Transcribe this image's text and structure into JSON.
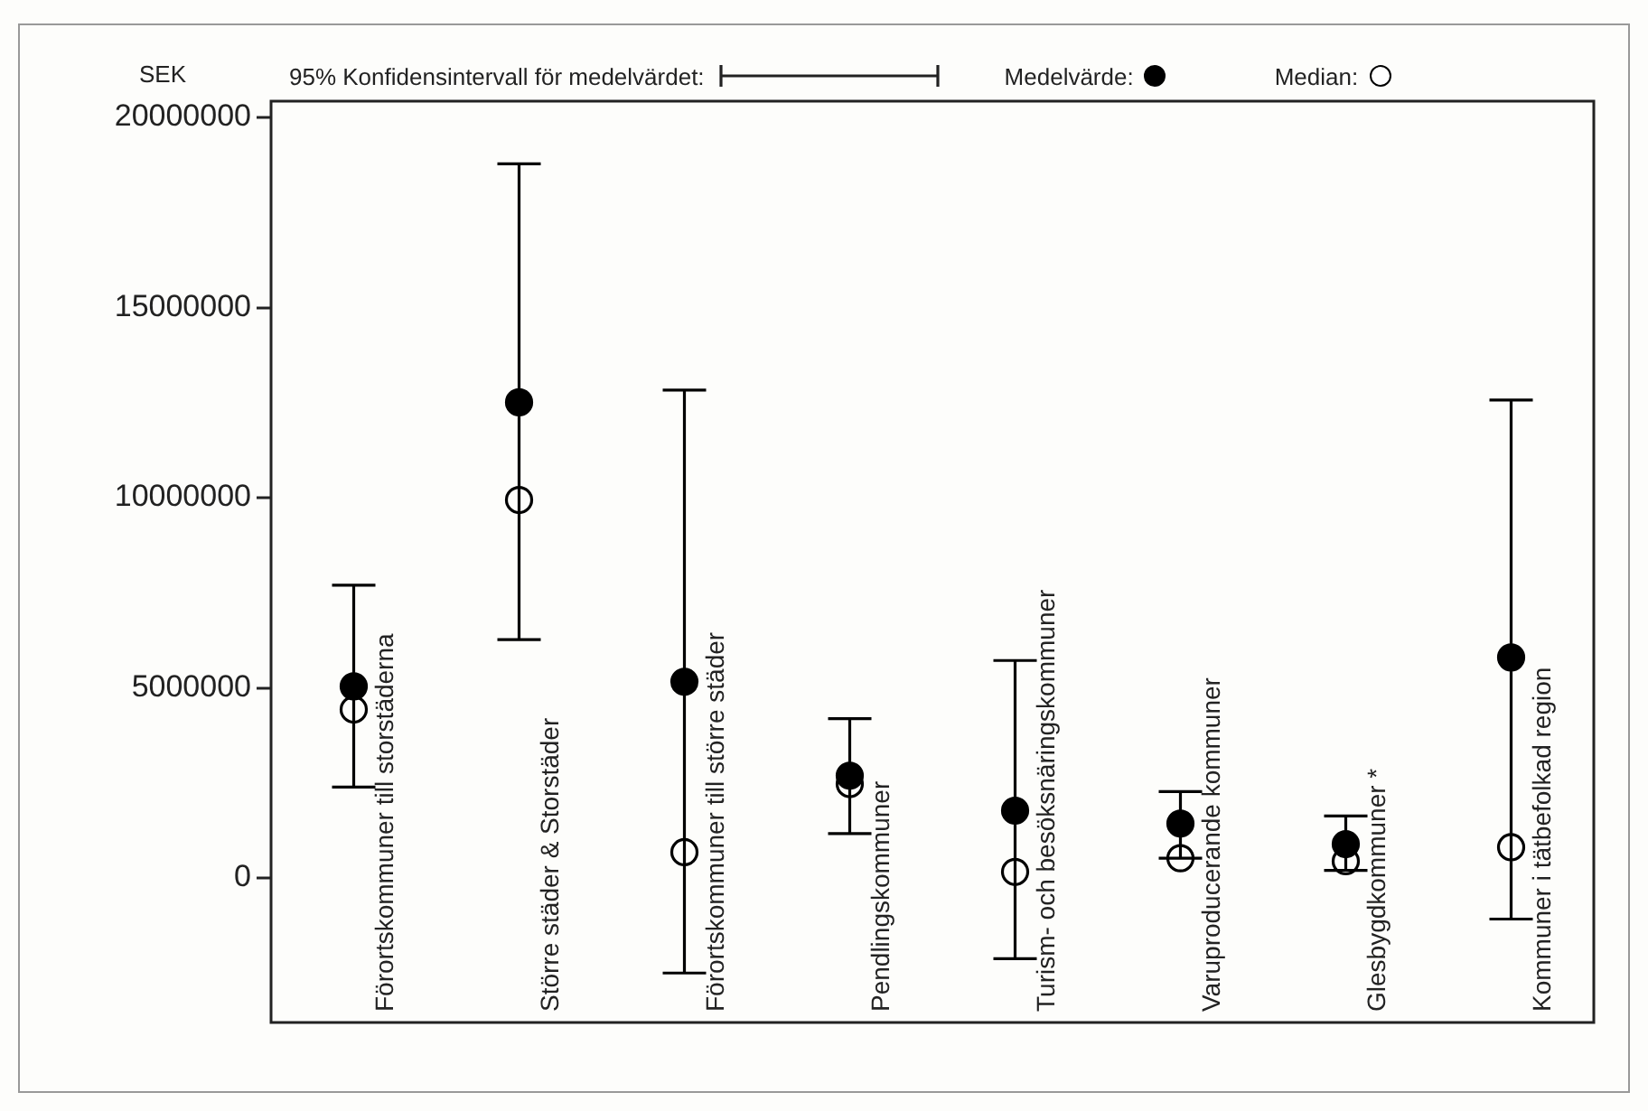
{
  "chart_data": {
    "type": "scatter",
    "ylabel": "SEK",
    "categories": [
      "Förortskommuner till storstäderna",
      "Större städer & Storstäder",
      "Förortskommuner till större städer",
      "Pendlingskommuner",
      "Turism- och besöksnäringskommuner",
      "Varuproducerande kommuner",
      "Glesbygdkommuner *",
      "Kommuner i tätbefolkad region"
    ],
    "series": [
      {
        "name": "Medelvärde:",
        "color": "#000000",
        "values": [
          5040000,
          12510000,
          5160000,
          2690000,
          1770000,
          1430000,
          890000,
          5800000
        ],
        "errors": [
          [
            2390000,
            7700000
          ],
          [
            6270000,
            18780000
          ],
          [
            -2500000,
            12830000
          ],
          [
            1170000,
            4190000
          ],
          [
            -2120000,
            5720000
          ],
          [
            520000,
            2270000
          ],
          [
            200000,
            1630000
          ],
          [
            -1080000,
            12570000
          ]
        ]
      },
      {
        "name": "Median:",
        "color": "#000000",
        "values": [
          4430000,
          9940000,
          680000,
          2470000,
          160000,
          520000,
          440000,
          810000
        ]
      }
    ],
    "annotations": [
      "95% Konfidensintervall för medelvärdet:"
    ],
    "ylim": [
      -3800000,
      20430000
    ],
    "yticks": [
      0,
      5000000,
      10000000,
      15000000,
      20000000
    ],
    "legend": "top",
    "marker": "circle",
    "grid": false
  }
}
